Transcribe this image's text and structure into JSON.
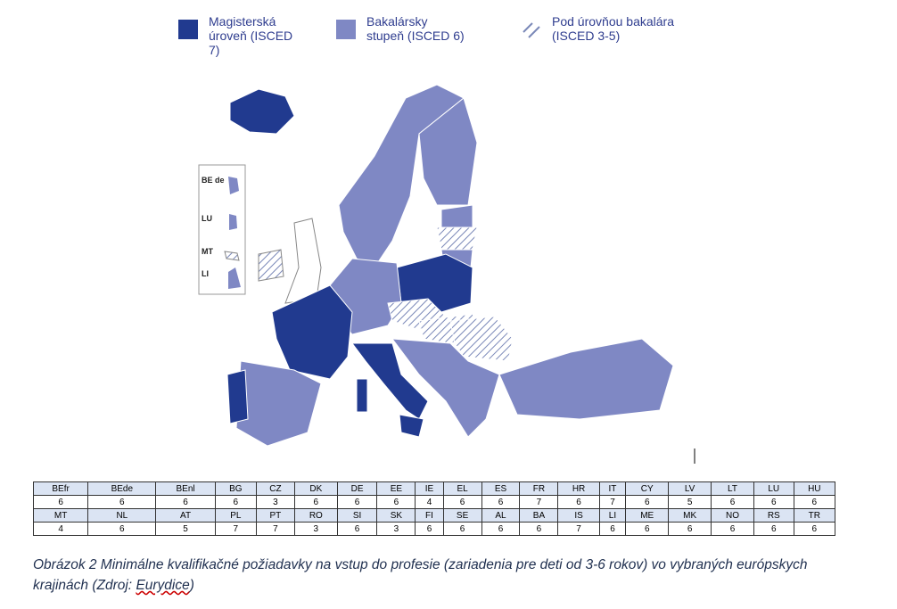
{
  "legend": [
    {
      "label": "Magisterská úroveň (ISCED 7)"
    },
    {
      "label": "Bakalársky stupeň (ISCED 6)"
    },
    {
      "label": "Pod úrovňou bakalára (ISCED 3-5)"
    }
  ],
  "inset": {
    "labels": [
      "BE de",
      "LU",
      "MT",
      "LI"
    ]
  },
  "table": {
    "rows": [
      [
        "BEfr",
        "BEde",
        "BEnl",
        "BG",
        "CZ",
        "DK",
        "DE",
        "EE",
        "IE",
        "EL",
        "ES",
        "FR",
        "HR",
        "IT",
        "CY",
        "LV",
        "LT",
        "LU",
        "HU"
      ],
      [
        6,
        6,
        6,
        6,
        3,
        6,
        6,
        6,
        4,
        6,
        6,
        7,
        6,
        7,
        6,
        5,
        6,
        6,
        6
      ],
      [
        "MT",
        "NL",
        "AT",
        "PL",
        "PT",
        "RO",
        "SI",
        "SK",
        "FI",
        "SE",
        "AL",
        "BA",
        "IS",
        "LI",
        "ME",
        "MK",
        "NO",
        "RS",
        "TR"
      ],
      [
        4,
        6,
        5,
        7,
        7,
        3,
        6,
        3,
        6,
        6,
        6,
        6,
        7,
        6,
        6,
        6,
        6,
        6,
        6
      ]
    ]
  },
  "caption": {
    "text": "Obrázok 2 Minimálne kvalifikačné požiadavky na vstup do profesie (zariadenia pre deti od 3-6 rokov) vo vybraných európskych krajinách (Zdroj: ",
    "source": "Eurydice",
    "end": ")"
  }
}
